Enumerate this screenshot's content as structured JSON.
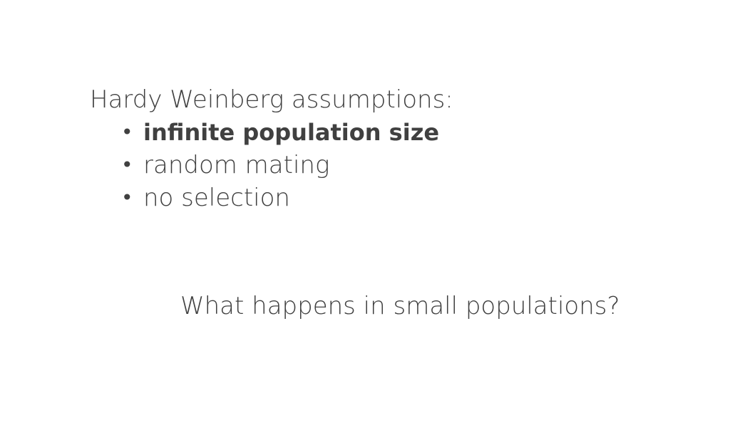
{
  "slide": {
    "heading": "Hardy Weinberg assumptions:",
    "bullets": [
      {
        "text": "infinite population size",
        "bullet": "•"
      },
      {
        "text": "random mating",
        "bullet": "•"
      },
      {
        "text": "no selection",
        "bullet": "•"
      }
    ],
    "question": "What happens in small populations?"
  }
}
